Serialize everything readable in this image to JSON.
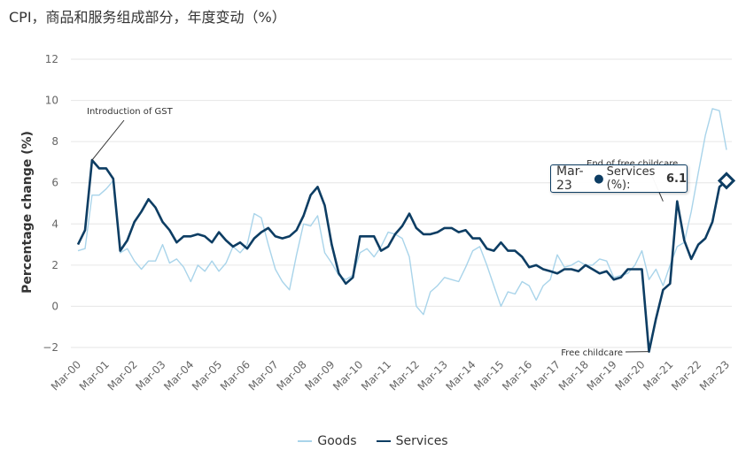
{
  "title": "CPI，商品和服务组成部分，年度变动（%）",
  "chart_data": {
    "type": "line",
    "ylabel": "Percentage change (%)",
    "ylim": [
      -2,
      12
    ],
    "yticks": [
      "−2",
      "0",
      "2",
      "4",
      "6",
      "8",
      "10",
      "12"
    ],
    "ytick_values": [
      -2,
      0,
      2,
      4,
      6,
      8,
      10,
      12
    ],
    "xticks": [
      "Mar-00",
      "Mar-01",
      "Mar-02",
      "Mar-03",
      "Mar-04",
      "Mar-05",
      "Mar-06",
      "Mar-07",
      "Mar-08",
      "Mar-09",
      "Mar-10",
      "Mar-11",
      "Mar-12",
      "Mar-13",
      "Mar-14",
      "Mar-15",
      "Mar-16",
      "Mar-17",
      "Mar-18",
      "Mar-19",
      "Mar-20",
      "Mar-21",
      "Mar-22",
      "Mar-23"
    ],
    "xtick_values": [
      2000,
      2001,
      2002,
      2003,
      2004,
      2005,
      2006,
      2007,
      2008,
      2009,
      2010,
      2011,
      2012,
      2013,
      2014,
      2015,
      2016,
      2017,
      2018,
      2019,
      2020,
      2021,
      2022,
      2023
    ],
    "grid": true,
    "series": [
      {
        "name": "Goods",
        "color": "#a9d4ea",
        "x": [
          2000,
          2000.25,
          2000.5,
          2000.75,
          2001,
          2001.25,
          2001.5,
          2001.75,
          2002,
          2002.25,
          2002.5,
          2002.75,
          2003,
          2003.25,
          2003.5,
          2003.75,
          2004,
          2004.25,
          2004.5,
          2004.75,
          2005,
          2005.25,
          2005.5,
          2005.75,
          2006,
          2006.25,
          2006.5,
          2006.75,
          2007,
          2007.25,
          2007.5,
          2007.75,
          2008,
          2008.25,
          2008.5,
          2008.75,
          2009,
          2009.25,
          2009.5,
          2009.75,
          2010,
          2010.25,
          2010.5,
          2010.75,
          2011,
          2011.25,
          2011.5,
          2011.75,
          2012,
          2012.25,
          2012.5,
          2012.75,
          2013,
          2013.25,
          2013.5,
          2013.75,
          2014,
          2014.25,
          2014.5,
          2014.75,
          2015,
          2015.25,
          2015.5,
          2015.75,
          2016,
          2016.25,
          2016.5,
          2016.75,
          2017,
          2017.25,
          2017.5,
          2017.75,
          2018,
          2018.25,
          2018.5,
          2018.75,
          2019,
          2019.25,
          2019.5,
          2019.75,
          2020,
          2020.25,
          2020.5,
          2020.75,
          2021,
          2021.25,
          2021.5,
          2021.75,
          2022,
          2022.25,
          2022.5,
          2022.75,
          2023
        ],
        "values": [
          2.7,
          2.8,
          5.4,
          5.4,
          5.7,
          6.1,
          2.6,
          2.8,
          2.2,
          1.8,
          2.2,
          2.2,
          3.0,
          2.1,
          2.3,
          1.9,
          1.2,
          2.0,
          1.7,
          2.2,
          1.7,
          2.1,
          2.9,
          2.6,
          3.0,
          4.5,
          4.3,
          3.0,
          1.8,
          1.2,
          0.8,
          2.5,
          4.0,
          3.9,
          4.4,
          2.6,
          2.1,
          1.5,
          1.3,
          1.5,
          2.6,
          2.8,
          2.4,
          2.9,
          3.6,
          3.5,
          3.3,
          2.4,
          0.0,
          -0.4,
          0.7,
          1.0,
          1.4,
          1.3,
          1.2,
          1.9,
          2.7,
          2.9,
          2.0,
          1.0,
          0.0,
          0.7,
          0.6,
          1.2,
          1.0,
          0.3,
          1.0,
          1.3,
          2.5,
          1.9,
          2.0,
          2.2,
          2.0,
          2.0,
          2.3,
          2.2,
          1.4,
          1.5,
          1.6,
          2.0,
          2.7,
          1.3,
          1.8,
          1.0,
          2.0,
          2.9,
          3.1,
          4.6,
          6.5,
          8.3,
          9.6,
          9.5,
          7.6
        ]
      },
      {
        "name": "Services",
        "color": "#0d3d63",
        "x": [
          2000,
          2000.25,
          2000.5,
          2000.75,
          2001,
          2001.25,
          2001.5,
          2001.75,
          2002,
          2002.25,
          2002.5,
          2002.75,
          2003,
          2003.25,
          2003.5,
          2003.75,
          2004,
          2004.25,
          2004.5,
          2004.75,
          2005,
          2005.25,
          2005.5,
          2005.75,
          2006,
          2006.25,
          2006.5,
          2006.75,
          2007,
          2007.25,
          2007.5,
          2007.75,
          2008,
          2008.25,
          2008.5,
          2008.75,
          2009,
          2009.25,
          2009.5,
          2009.75,
          2010,
          2010.25,
          2010.5,
          2010.75,
          2011,
          2011.25,
          2011.5,
          2011.75,
          2012,
          2012.25,
          2012.5,
          2012.75,
          2013,
          2013.25,
          2013.5,
          2013.75,
          2014,
          2014.25,
          2014.5,
          2014.75,
          2015,
          2015.25,
          2015.5,
          2015.75,
          2016,
          2016.25,
          2016.5,
          2016.75,
          2017,
          2017.25,
          2017.5,
          2017.75,
          2018,
          2018.25,
          2018.5,
          2018.75,
          2019,
          2019.25,
          2019.5,
          2019.75,
          2020,
          2020.25,
          2020.5,
          2020.75,
          2021,
          2021.25,
          2021.5,
          2021.75,
          2022,
          2022.25,
          2022.5,
          2022.75,
          2023
        ],
        "values": [
          3.0,
          3.7,
          7.1,
          6.7,
          6.7,
          6.2,
          2.7,
          3.2,
          4.1,
          4.6,
          5.2,
          4.8,
          4.1,
          3.7,
          3.1,
          3.4,
          3.4,
          3.5,
          3.4,
          3.1,
          3.6,
          3.2,
          2.9,
          3.1,
          2.8,
          3.3,
          3.6,
          3.8,
          3.4,
          3.3,
          3.4,
          3.7,
          4.4,
          5.4,
          5.8,
          4.9,
          3.0,
          1.6,
          1.1,
          1.4,
          3.4,
          3.4,
          3.4,
          2.7,
          2.9,
          3.5,
          3.9,
          4.5,
          3.8,
          3.5,
          3.5,
          3.6,
          3.8,
          3.8,
          3.6,
          3.7,
          3.3,
          3.3,
          2.8,
          2.7,
          3.1,
          2.7,
          2.7,
          2.4,
          1.9,
          2.0,
          1.8,
          1.7,
          1.6,
          1.8,
          1.8,
          1.7,
          2.0,
          1.8,
          1.6,
          1.7,
          1.3,
          1.4,
          1.8,
          1.8,
          1.8,
          -2.2,
          -0.6,
          0.8,
          1.1,
          5.1,
          3.2,
          2.3,
          3.0,
          3.3,
          4.1,
          5.8,
          6.1
        ]
      }
    ],
    "annotations": [
      {
        "text": "Introduction of GST",
        "x": 2000.5,
        "y": 7.1
      },
      {
        "text": "End of free childcare",
        "x": 2020.75,
        "y": 5.1
      },
      {
        "text": "Free childcare",
        "x": 2020.25,
        "y": -2.2
      }
    ],
    "tooltip": {
      "date": "Mar-23",
      "series": "Services (%):",
      "value": "6.1"
    },
    "legend": [
      "Goods",
      "Services"
    ]
  }
}
